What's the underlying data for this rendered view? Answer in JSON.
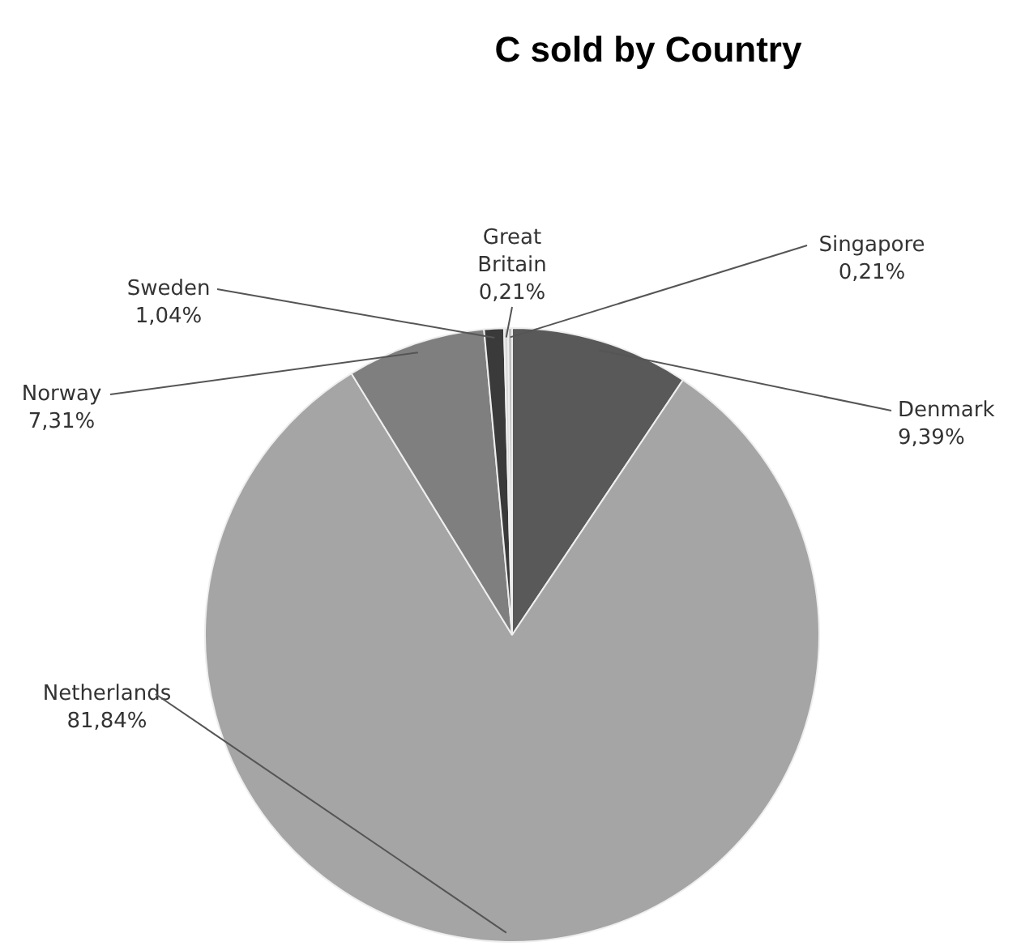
{
  "chart_data": {
    "type": "pie",
    "title": "C sold by Country",
    "categories": [
      "Denmark",
      "Netherlands",
      "Norway",
      "Sweden",
      "Great Britain",
      "Singapore"
    ],
    "values": [
      9.39,
      81.84,
      7.31,
      1.04,
      0.21,
      0.21
    ],
    "value_labels": [
      "9,39%",
      "81,84%",
      "7,31%",
      "1,04%",
      "0,21%",
      "0,21%"
    ],
    "colors": [
      "#595959",
      "#a5a5a5",
      "#7f7f7f",
      "#3a3a3a",
      "#d9d9d9",
      "#bfbfbf"
    ],
    "legend": false
  }
}
